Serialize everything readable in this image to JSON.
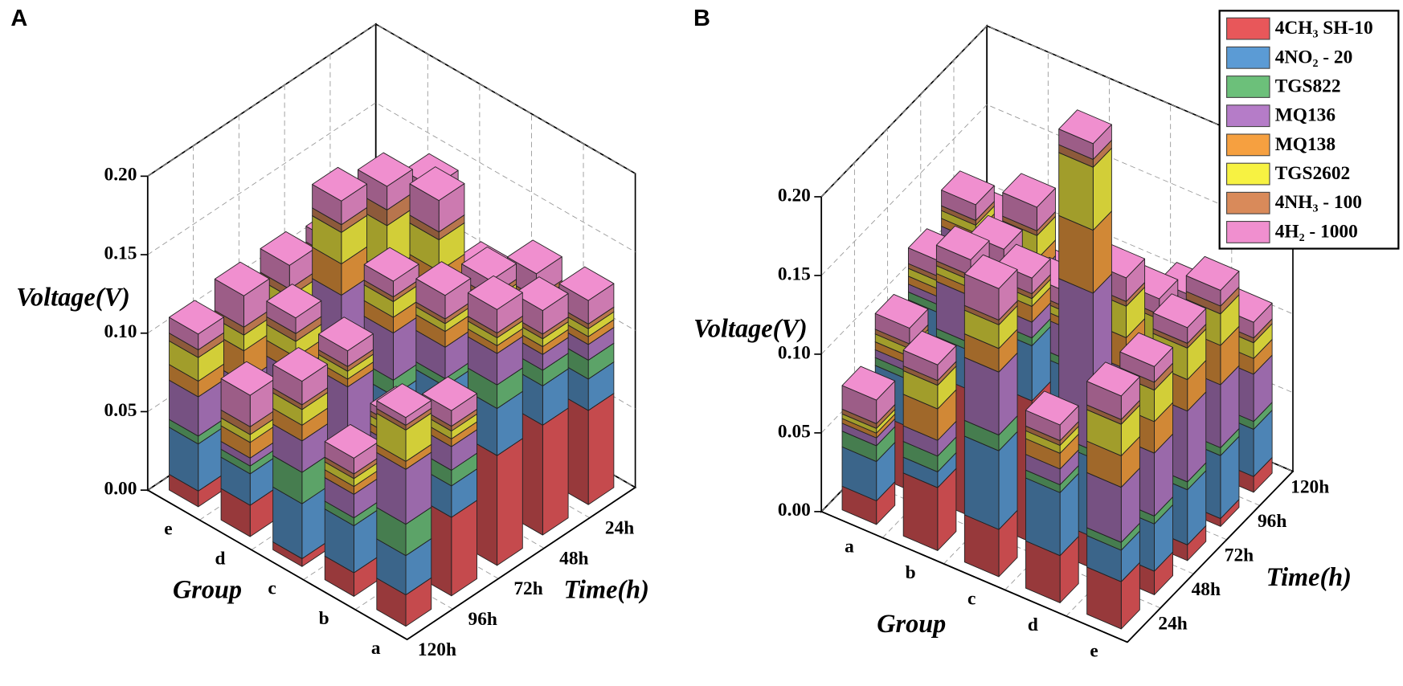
{
  "chart_data": [
    {
      "type": "bar3d",
      "panel": "A",
      "categories": [
        "a",
        "b",
        "c",
        "d",
        "e"
      ],
      "times": [
        "24h",
        "48h",
        "72h",
        "96h",
        "120h"
      ],
      "ylabel": "Voltage(V)",
      "xlabel": "Group",
      "tlabel": "Time(h)",
      "ylim": [
        0,
        0.2
      ],
      "yticks": [
        {
          "value": 0,
          "label": "0.00"
        },
        {
          "value": 0.05,
          "label": "0.05"
        },
        {
          "value": 0.1,
          "label": "0.10"
        },
        {
          "value": 0.15,
          "label": "0.15"
        },
        {
          "value": 0.2,
          "label": "0.20"
        }
      ],
      "grid": true,
      "series": [
        {
          "color": "#e8575a",
          "values": [
            [
              0.06,
              0.07,
              0.07,
              0.05,
              0.02
            ],
            [
              0.05,
              0.07,
              0.06,
              0.03,
              0.015
            ],
            [
              0.01,
              0.03,
              0.04,
              0.01,
              0.005
            ],
            [
              0.015,
              0.02,
              0.015,
              0.01,
              0.02
            ],
            [
              0.01,
              0.01,
              0.01,
              0.01,
              0.01
            ]
          ]
        },
        {
          "color": "#5b9bd5",
          "values": [
            [
              0.02,
              0.025,
              0.03,
              0.02,
              0.025
            ],
            [
              0.03,
              0.03,
              0.035,
              0.03,
              0.03
            ],
            [
              0.02,
              0.03,
              0.03,
              0.03,
              0.035
            ],
            [
              0.02,
              0.03,
              0.03,
              0.025,
              0.02
            ],
            [
              0.02,
              0.03,
              0.03,
              0.025,
              0.03
            ]
          ]
        },
        {
          "color": "#6cc07a",
          "values": [
            [
              0.012,
              0.01,
              0.015,
              0.01,
              0.02
            ],
            [
              0.005,
              0.01,
              0.005,
              0.005,
              0.005
            ],
            [
              0.01,
              0.01,
              0.01,
              0.005,
              0.02
            ],
            [
              0.02,
              0.01,
              0.02,
              0.01,
              0.005
            ],
            [
              0.005,
              0.005,
              0.005,
              0.005,
              0.005
            ]
          ]
        },
        {
          "color": "#b57cc8",
          "values": [
            [
              0.01,
              0.01,
              0.02,
              0.015,
              0.035
            ],
            [
              0.01,
              0.01,
              0.02,
              0.01,
              0.015
            ],
            [
              0.015,
              0.04,
              0.03,
              0.05,
              0.02
            ],
            [
              0.02,
              0.03,
              0.05,
              0.04,
              0.005
            ],
            [
              0.02,
              0.02,
              0.02,
              0.02,
              0.025
            ]
          ]
        },
        {
          "color": "#f6a040",
          "values": [
            [
              0.005,
              0.005,
              0.005,
              0.005,
              0.005
            ],
            [
              0.005,
              0.005,
              0.01,
              0.005,
              0.005
            ],
            [
              0.02,
              0.02,
              0.01,
              0.005,
              0.01
            ],
            [
              0.02,
              0.02,
              0.02,
              0.01,
              0.01
            ],
            [
              0.02,
              0.02,
              0.02,
              0.02,
              0.01
            ]
          ]
        },
        {
          "color": "#f7f242",
          "values": [
            [
              0.005,
              0.005,
              0.005,
              0.005,
              0.02
            ],
            [
              0.01,
              0.005,
              0.005,
              0.005,
              0.005
            ],
            [
              0.02,
              0.02,
              0.01,
              0.005,
              0.01
            ],
            [
              0.02,
              0.03,
              0.02,
              0.01,
              0.005
            ],
            [
              0.02,
              0.01,
              0.01,
              0.01,
              0.015
            ]
          ]
        },
        {
          "color": "#d98a5a",
          "values": [
            [
              0.003,
              0.003,
              0.003,
              0.003,
              0.003
            ],
            [
              0.003,
              0.003,
              0.003,
              0.003,
              0.003
            ],
            [
              0.003,
              0.005,
              0.003,
              0.003,
              0.003
            ],
            [
              0.02,
              0.01,
              0.005,
              0.005,
              0.005
            ],
            [
              0.005,
              0.005,
              0.005,
              0.005,
              0.005
            ]
          ]
        },
        {
          "color": "#f08fcf",
          "values": [
            [
              0.015,
              0.015,
              0.015,
              0.01,
              0.005
            ],
            [
              0.015,
              0.01,
              0.015,
              0.005,
              0.01
            ],
            [
              0.01,
              0.02,
              0.01,
              0.01,
              0.015
            ],
            [
              0.01,
              0.015,
              0.015,
              0.01,
              0.02
            ],
            [
              0.01,
              0.01,
              0.015,
              0.02,
              0.01
            ]
          ]
        }
      ]
    },
    {
      "type": "bar3d",
      "panel": "B",
      "categories": [
        "a",
        "b",
        "c",
        "d",
        "e"
      ],
      "times": [
        "24h",
        "48h",
        "72h",
        "96h",
        "120h"
      ],
      "ylabel": "Voltage(V)",
      "xlabel": "Group",
      "tlabel": "Time(h)",
      "ylim": [
        0,
        0.2
      ],
      "yticks": [
        {
          "value": 0,
          "label": "0.00"
        },
        {
          "value": 0.05,
          "label": "0.05"
        },
        {
          "value": 0.1,
          "label": "0.10"
        },
        {
          "value": 0.15,
          "label": "0.15"
        },
        {
          "value": 0.2,
          "label": "0.20"
        }
      ],
      "grid": true,
      "legend": "top-right",
      "series": [
        {
          "name": "4CH₃ SH-10",
          "color": "#e8575a",
          "values": [
            [
              0.015,
              0.04,
              0.06,
              0.05,
              0.03
            ],
            [
              0.04,
              0.08,
              0.07,
              0.04,
              0.02
            ],
            [
              0.03,
              0.09,
              0.06,
              0.03,
              0.01
            ],
            [
              0.03,
              0.02,
              0.02,
              0.01,
              0.005
            ],
            [
              0.03,
              0.015,
              0.01,
              0.005,
              0.01
            ]
          ]
        },
        {
          "name": "4NO₂ - 20",
          "color": "#5b9bd5",
          "values": [
            [
              0.025,
              0.03,
              0.03,
              0.04,
              0.03
            ],
            [
              0.01,
              0.025,
              0.03,
              0.035,
              0.025
            ],
            [
              0.05,
              0.035,
              0.03,
              0.02,
              0.02
            ],
            [
              0.04,
              0.05,
              0.04,
              0.03,
              0.035
            ],
            [
              0.02,
              0.03,
              0.035,
              0.04,
              0.03
            ]
          ]
        },
        {
          "name": "TGS822",
          "color": "#6cc07a",
          "values": [
            [
              0.01,
              0.005,
              0.005,
              0.005,
              0.005
            ],
            [
              0.01,
              0.005,
              0.005,
              0.015,
              0.005
            ],
            [
              0.01,
              0.005,
              0.005,
              0.005,
              0.005
            ],
            [
              0.005,
              0.005,
              0.005,
              0.005,
              0.005
            ],
            [
              0.005,
              0.005,
              0.005,
              0.005,
              0.005
            ]
          ]
        },
        {
          "name": "MQ136",
          "color": "#b57cc8",
          "values": [
            [
              0.005,
              0.005,
              0.005,
              0.02,
              0.02
            ],
            [
              0.01,
              0.03,
              0.01,
              0.02,
              0.01
            ],
            [
              0.04,
              0.01,
              0.02,
              0.01,
              0.01
            ],
            [
              0.01,
              0.1,
              0.04,
              0.04,
              0.03
            ],
            [
              0.035,
              0.04,
              0.045,
              0.04,
              0.03
            ]
          ]
        },
        {
          "name": "MQ138",
          "color": "#f6a040",
          "values": [
            [
              0.003,
              0.005,
              0.005,
              0.005,
              0.005
            ],
            [
              0.02,
              0.005,
              0.005,
              0.01,
              0.005
            ],
            [
              0.015,
              0.01,
              0.005,
              0.01,
              0.005
            ],
            [
              0.01,
              0.04,
              0.02,
              0.015,
              0.01
            ],
            [
              0.02,
              0.02,
              0.02,
              0.025,
              0.01
            ]
          ]
        },
        {
          "name": "TGS2602",
          "color": "#f7f242",
          "values": [
            [
              0.003,
              0.005,
              0.005,
              0.005,
              0.005
            ],
            [
              0.015,
              0.005,
              0.01,
              0.015,
              0.005
            ],
            [
              0.015,
              0.005,
              0.005,
              0.005,
              0.005
            ],
            [
              0.005,
              0.04,
              0.02,
              0.015,
              0.01
            ],
            [
              0.02,
              0.02,
              0.02,
              0.02,
              0.01
            ]
          ]
        },
        {
          "name": "4NH₃ - 100",
          "color": "#d98a5a",
          "values": [
            [
              0.003,
              0.003,
              0.003,
              0.003,
              0.003
            ],
            [
              0.003,
              0.003,
              0.003,
              0.003,
              0.003
            ],
            [
              0.003,
              0.003,
              0.003,
              0.003,
              0.003
            ],
            [
              0.003,
              0.005,
              0.003,
              0.003,
              0.003
            ],
            [
              0.003,
              0.005,
              0.003,
              0.005,
              0.003
            ]
          ]
        },
        {
          "name": "4H₂ - 1000",
          "color": "#f08fcf",
          "values": [
            [
              0.015,
              0.01,
              0.01,
              0.01,
              0.005
            ],
            [
              0.01,
              0.01,
              0.015,
              0.015,
              0.01
            ],
            [
              0.02,
              0.01,
              0.01,
              0.01,
              0.01
            ],
            [
              0.01,
              0.01,
              0.015,
              0.01,
              0.01
            ],
            [
              0.015,
              0.01,
              0.01,
              0.01,
              0.01
            ]
          ]
        }
      ]
    }
  ]
}
